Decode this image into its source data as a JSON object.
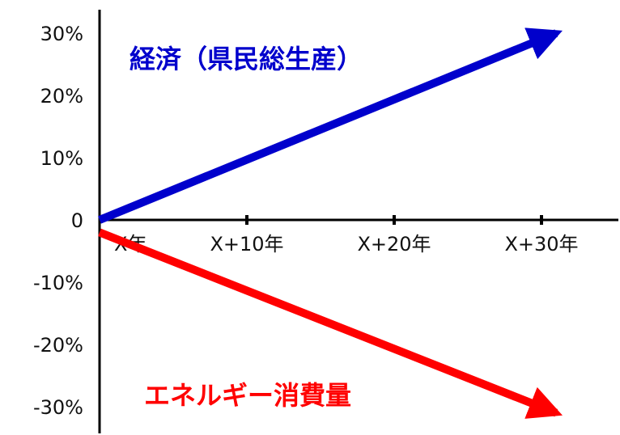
{
  "chart_data": {
    "type": "line",
    "title": "",
    "xlabel": "",
    "ylabel": "",
    "x": [
      0,
      10,
      20,
      30
    ],
    "x_tick_labels": [
      "X年",
      "X+10年",
      "X+20年",
      "X+30年"
    ],
    "y_ticks": [
      30,
      20,
      10,
      0,
      -10,
      -20,
      -30
    ],
    "y_tick_labels": [
      "30%",
      "20%",
      "10%",
      "0",
      "-10%",
      "-20%",
      "-30%"
    ],
    "xlim": [
      0,
      34
    ],
    "ylim": [
      -33,
      33
    ],
    "grid": false,
    "legend": "none",
    "series": [
      {
        "name": "経済（県民総生産）",
        "color": "#0000cc",
        "arrow": true,
        "x": [
          0,
          31
        ],
        "y": [
          0,
          30
        ]
      },
      {
        "name": "エネルギー消費量",
        "color": "#ff0000",
        "arrow": true,
        "x": [
          0,
          31
        ],
        "y": [
          -2,
          -31
        ]
      }
    ]
  }
}
